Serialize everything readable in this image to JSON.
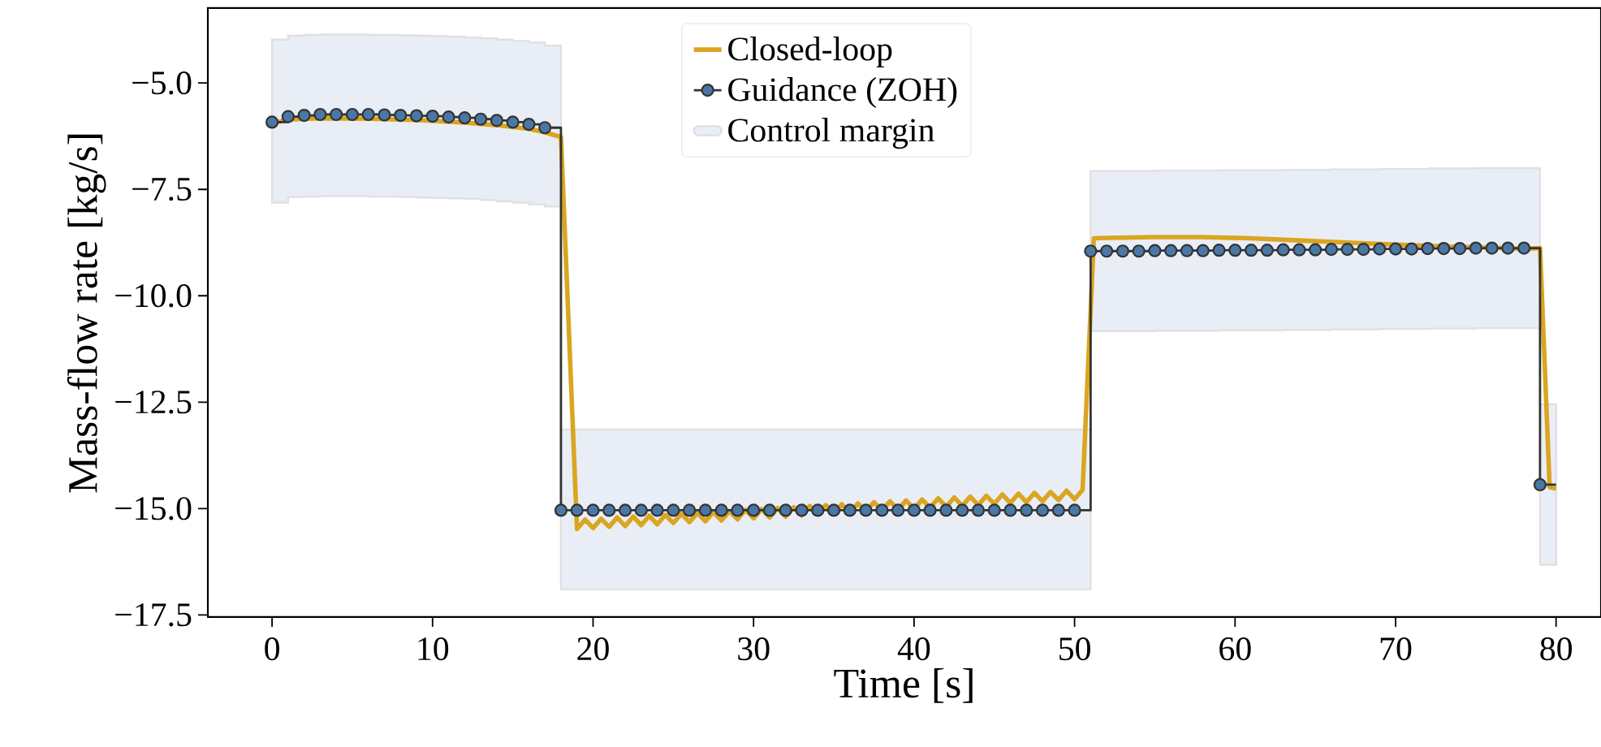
{
  "chart_data": {
    "type": "line",
    "xlabel": "Time [s]",
    "ylabel": "Mass-flow rate [kg/s]",
    "xlim": [
      -4,
      82.8
    ],
    "ylim": [
      -17.55,
      -3.24
    ],
    "xticks": [
      0,
      10,
      20,
      30,
      40,
      50,
      60,
      70,
      80
    ],
    "yticks": [
      {
        "value": -5.0,
        "label": "−5.0"
      },
      {
        "value": -7.5,
        "label": "−7.5"
      },
      {
        "value": -10.0,
        "label": "−10.0"
      },
      {
        "value": -12.5,
        "label": "−12.5"
      },
      {
        "value": -15.0,
        "label": "−15.0"
      },
      {
        "value": -17.5,
        "label": "−17.5"
      }
    ],
    "legend": "top",
    "grid": false,
    "annotations": [
      "Control margin"
    ],
    "series": [
      {
        "name": "Closed-loop",
        "color": "#daa520",
        "marker": "none",
        "x": [
          0,
          1,
          3,
          6,
          9,
          12,
          14,
          16,
          17,
          18,
          19,
          19.5,
          20,
          20.5,
          21,
          21.5,
          22,
          22.5,
          23,
          23.5,
          24,
          24.5,
          25,
          25.5,
          26,
          26.5,
          27,
          27.5,
          28,
          28.5,
          29,
          29.5,
          30,
          30.5,
          31,
          31.5,
          32,
          32.5,
          33,
          33.5,
          34,
          34.5,
          35,
          35.5,
          36,
          36.5,
          37,
          37.5,
          38,
          38.5,
          39,
          39.5,
          40,
          40.5,
          41,
          41.5,
          42,
          42.5,
          43,
          43.5,
          44,
          44.5,
          45,
          45.5,
          46,
          46.5,
          47,
          47.5,
          48,
          48.5,
          49,
          49.5,
          50,
          50.5,
          51.2,
          52,
          55,
          58,
          61,
          64,
          67,
          70,
          73,
          76,
          78,
          79,
          79.6,
          80
        ],
        "values": [
          -5.95,
          -5.86,
          -5.83,
          -5.84,
          -5.87,
          -5.93,
          -5.99,
          -6.08,
          -6.16,
          -6.27,
          -15.48,
          -15.26,
          -15.46,
          -15.24,
          -15.43,
          -15.21,
          -15.41,
          -15.19,
          -15.39,
          -15.17,
          -15.37,
          -15.15,
          -15.34,
          -15.12,
          -15.32,
          -15.1,
          -15.3,
          -15.08,
          -15.28,
          -15.06,
          -15.25,
          -15.03,
          -15.23,
          -15.01,
          -15.21,
          -14.99,
          -15.19,
          -14.97,
          -15.16,
          -14.94,
          -15.14,
          -14.92,
          -15.12,
          -14.9,
          -15.1,
          -14.88,
          -15.07,
          -14.85,
          -15.05,
          -14.83,
          -15.03,
          -14.81,
          -15.01,
          -14.79,
          -14.98,
          -14.76,
          -14.96,
          -14.74,
          -14.94,
          -14.72,
          -14.92,
          -14.7,
          -14.89,
          -14.67,
          -14.87,
          -14.65,
          -14.85,
          -14.63,
          -14.83,
          -14.61,
          -14.8,
          -14.58,
          -14.78,
          -14.56,
          -8.65,
          -8.64,
          -8.62,
          -8.62,
          -8.65,
          -8.7,
          -8.75,
          -8.8,
          -8.84,
          -8.87,
          -8.9,
          -8.88,
          -14.5,
          -14.53
        ]
      },
      {
        "name": "Guidance (ZOH)",
        "type": "step",
        "color": "#333333",
        "marker": "circle",
        "x": [
          0,
          1,
          2,
          3,
          4,
          5,
          6,
          7,
          8,
          9,
          10,
          11,
          12,
          13,
          14,
          15,
          16,
          17,
          18,
          19,
          20,
          21,
          22,
          23,
          24,
          25,
          26,
          27,
          28,
          29,
          30,
          31,
          32,
          33,
          34,
          35,
          36,
          37,
          38,
          39,
          40,
          41,
          42,
          43,
          44,
          45,
          46,
          47,
          48,
          49,
          50,
          51,
          52,
          53,
          54,
          55,
          56,
          57,
          58,
          59,
          60,
          61,
          62,
          63,
          64,
          65,
          66,
          67,
          68,
          69,
          70,
          71,
          72,
          73,
          74,
          75,
          76,
          77,
          78,
          79,
          80
        ],
        "values": [
          -5.92,
          -5.79,
          -5.76,
          -5.74,
          -5.74,
          -5.74,
          -5.74,
          -5.75,
          -5.76,
          -5.77,
          -5.78,
          -5.8,
          -5.82,
          -5.85,
          -5.88,
          -5.92,
          -5.97,
          -6.05,
          -15.04,
          -15.04,
          -15.04,
          -15.04,
          -15.04,
          -15.04,
          -15.04,
          -15.04,
          -15.04,
          -15.04,
          -15.04,
          -15.04,
          -15.04,
          -15.04,
          -15.04,
          -15.04,
          -15.04,
          -15.04,
          -15.04,
          -15.04,
          -15.04,
          -15.04,
          -15.04,
          -15.04,
          -15.04,
          -15.04,
          -15.04,
          -15.04,
          -15.04,
          -15.04,
          -15.04,
          -15.04,
          -15.04,
          -8.95,
          -8.95,
          -8.95,
          -8.95,
          -8.94,
          -8.94,
          -8.94,
          -8.94,
          -8.93,
          -8.93,
          -8.93,
          -8.93,
          -8.92,
          -8.92,
          -8.92,
          -8.91,
          -8.91,
          -8.91,
          -8.9,
          -8.9,
          -8.9,
          -8.89,
          -8.89,
          -8.89,
          -8.88,
          -8.88,
          -8.88,
          -8.88,
          -14.44,
          -14.44
        ],
        "upper": [
          -3.98,
          -3.89,
          -3.87,
          -3.86,
          -3.86,
          -3.86,
          -3.87,
          -3.87,
          -3.88,
          -3.89,
          -3.9,
          -3.91,
          -3.93,
          -3.95,
          -3.98,
          -4.01,
          -4.05,
          -4.12,
          -13.14,
          -13.14,
          -13.14,
          -13.14,
          -13.14,
          -13.14,
          -13.14,
          -13.14,
          -13.14,
          -13.14,
          -13.14,
          -13.14,
          -13.14,
          -13.14,
          -13.14,
          -13.14,
          -13.14,
          -13.14,
          -13.14,
          -13.14,
          -13.14,
          -13.14,
          -13.14,
          -13.14,
          -13.14,
          -13.14,
          -13.14,
          -13.14,
          -13.14,
          -13.14,
          -13.14,
          -13.14,
          -13.14,
          -7.07,
          -7.07,
          -7.07,
          -7.07,
          -7.06,
          -7.06,
          -7.06,
          -7.06,
          -7.05,
          -7.05,
          -7.05,
          -7.05,
          -7.04,
          -7.04,
          -7.04,
          -7.03,
          -7.03,
          -7.03,
          -7.02,
          -7.02,
          -7.02,
          -7.01,
          -7.01,
          -7.01,
          -7.0,
          -7.0,
          -7.0,
          -7.0,
          -12.55,
          -12.55
        ],
        "lower": [
          -7.81,
          -7.68,
          -7.67,
          -7.66,
          -7.66,
          -7.66,
          -7.67,
          -7.67,
          -7.68,
          -7.69,
          -7.7,
          -7.71,
          -7.72,
          -7.75,
          -7.78,
          -7.81,
          -7.85,
          -7.9,
          -16.9,
          -16.9,
          -16.9,
          -16.9,
          -16.9,
          -16.9,
          -16.9,
          -16.9,
          -16.9,
          -16.9,
          -16.9,
          -16.9,
          -16.9,
          -16.9,
          -16.9,
          -16.9,
          -16.9,
          -16.9,
          -16.9,
          -16.9,
          -16.9,
          -16.9,
          -16.9,
          -16.9,
          -16.9,
          -16.9,
          -16.9,
          -16.9,
          -16.9,
          -16.9,
          -16.9,
          -16.9,
          -16.9,
          -10.83,
          -10.83,
          -10.83,
          -10.83,
          -10.82,
          -10.82,
          -10.82,
          -10.82,
          -10.81,
          -10.81,
          -10.81,
          -10.81,
          -10.8,
          -10.8,
          -10.8,
          -10.79,
          -10.79,
          -10.79,
          -10.78,
          -10.78,
          -10.78,
          -10.77,
          -10.77,
          -10.77,
          -10.76,
          -10.76,
          -10.76,
          -10.76,
          -16.32,
          -16.32
        ]
      }
    ]
  }
}
